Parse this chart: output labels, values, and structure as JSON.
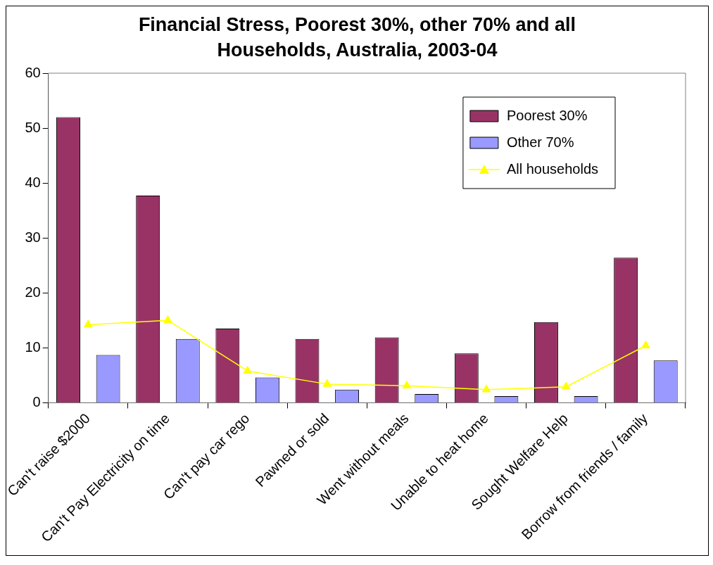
{
  "chart_data": {
    "type": "bar",
    "title": "Financial Stress, Poorest 30%, other 70% and all Households, Australia, 2003-04",
    "categories": [
      "Can't raise $2000",
      "Can't Pay Electricity on time",
      "Can't pay car rego",
      "Pawned or sold",
      "Went without meals",
      "Unable to heat home",
      "Sought Welfare Help",
      "Borrow from friends / family"
    ],
    "series": [
      {
        "name": "Poorest 30%",
        "color": "#993366",
        "values": [
          52,
          37.7,
          13.5,
          11.6,
          11.9,
          9,
          14.7,
          26.4
        ]
      },
      {
        "name": "Other 70%",
        "color": "#9999ff",
        "values": [
          8.7,
          11.6,
          4.6,
          2.4,
          1.6,
          1.2,
          1.2,
          7.7
        ]
      },
      {
        "name": "All households",
        "type": "line",
        "color": "#ffff00",
        "values": [
          14.2,
          15.0,
          5.8,
          3.4,
          3.1,
          2.4,
          2.9,
          10.4
        ]
      }
    ],
    "ylim": [
      0,
      60
    ],
    "yticks": [
      0,
      10,
      20,
      30,
      40,
      50,
      60
    ],
    "grid": false,
    "legend": "top right",
    "marker": "triangle"
  }
}
